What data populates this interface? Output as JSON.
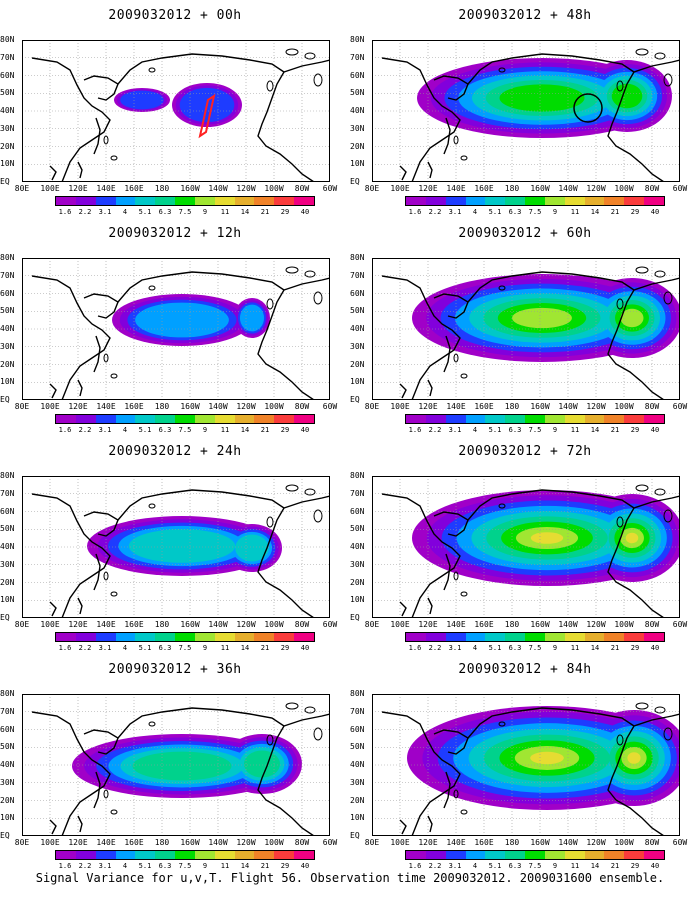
{
  "panels": [
    {
      "title": "2009032012 + 00h",
      "intensity": 0
    },
    {
      "title": "2009032012 + 48h",
      "intensity": 4
    },
    {
      "title": "2009032012 + 12h",
      "intensity": 1
    },
    {
      "title": "2009032012 + 60h",
      "intensity": 5
    },
    {
      "title": "2009032012 + 24h",
      "intensity": 2
    },
    {
      "title": "2009032012 + 72h",
      "intensity": 6
    },
    {
      "title": "2009032012 + 36h",
      "intensity": 3
    },
    {
      "title": "2009032012 + 84h",
      "intensity": 7
    }
  ],
  "lat_labels": [
    "80N",
    "70N",
    "60N",
    "50N",
    "40N",
    "30N",
    "20N",
    "10N",
    "EQ"
  ],
  "lon_labels": [
    "80E",
    "100E",
    "120E",
    "140E",
    "160E",
    "180",
    "160W",
    "140W",
    "120W",
    "100W",
    "80W",
    "60W"
  ],
  "colorbar": {
    "ticks": [
      "1.6",
      "2.2",
      "3.1",
      "4",
      "5.1",
      "6.3",
      "7.5",
      "9",
      "11",
      "14",
      "21",
      "29",
      "40"
    ],
    "colors": [
      "#a000c8",
      "#8200dc",
      "#1e3cff",
      "#00a0ff",
      "#00c8c8",
      "#00d28c",
      "#00dc00",
      "#a0e632",
      "#e6dc32",
      "#e6af2d",
      "#f08228",
      "#fa3c3c",
      "#f00082"
    ]
  },
  "footer": "Signal Variance for u,v,T. Flight 56. Observation time 2009032012. 2009031600 ensemble."
}
